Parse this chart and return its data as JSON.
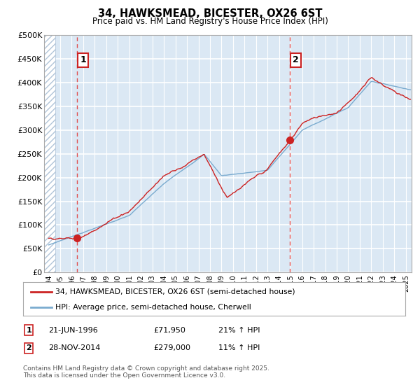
{
  "title": "34, HAWKSMEAD, BICESTER, OX26 6ST",
  "subtitle": "Price paid vs. HM Land Registry's House Price Index (HPI)",
  "xmin": 1993.6,
  "xmax": 2025.5,
  "ymin": 0,
  "ymax": 500000,
  "yticks": [
    0,
    50000,
    100000,
    150000,
    200000,
    250000,
    300000,
    350000,
    400000,
    450000,
    500000
  ],
  "ytick_labels": [
    "£0",
    "£50K",
    "£100K",
    "£150K",
    "£200K",
    "£250K",
    "£300K",
    "£350K",
    "£400K",
    "£450K",
    "£500K"
  ],
  "sale1_x": 1996.47,
  "sale1_y": 71950,
  "sale2_x": 2014.92,
  "sale2_y": 279000,
  "sale1_date": "21-JUN-1996",
  "sale1_price": "£71,950",
  "sale1_hpi": "21% ↑ HPI",
  "sale2_date": "28-NOV-2014",
  "sale2_price": "£279,000",
  "sale2_hpi": "11% ↑ HPI",
  "legend_line1": "34, HAWKSMEAD, BICESTER, OX26 6ST (semi-detached house)",
  "legend_line2": "HPI: Average price, semi-detached house, Cherwell",
  "footer": "Contains HM Land Registry data © Crown copyright and database right 2025.\nThis data is licensed under the Open Government Licence v3.0.",
  "line_color_red": "#cc2222",
  "line_color_blue": "#7aabcf",
  "bg_color": "#dbe8f4",
  "grid_color": "#ffffff",
  "dashed_line_color": "#e05050",
  "label_box_color": "#cc2222",
  "hatch_area_end": 1994.6
}
